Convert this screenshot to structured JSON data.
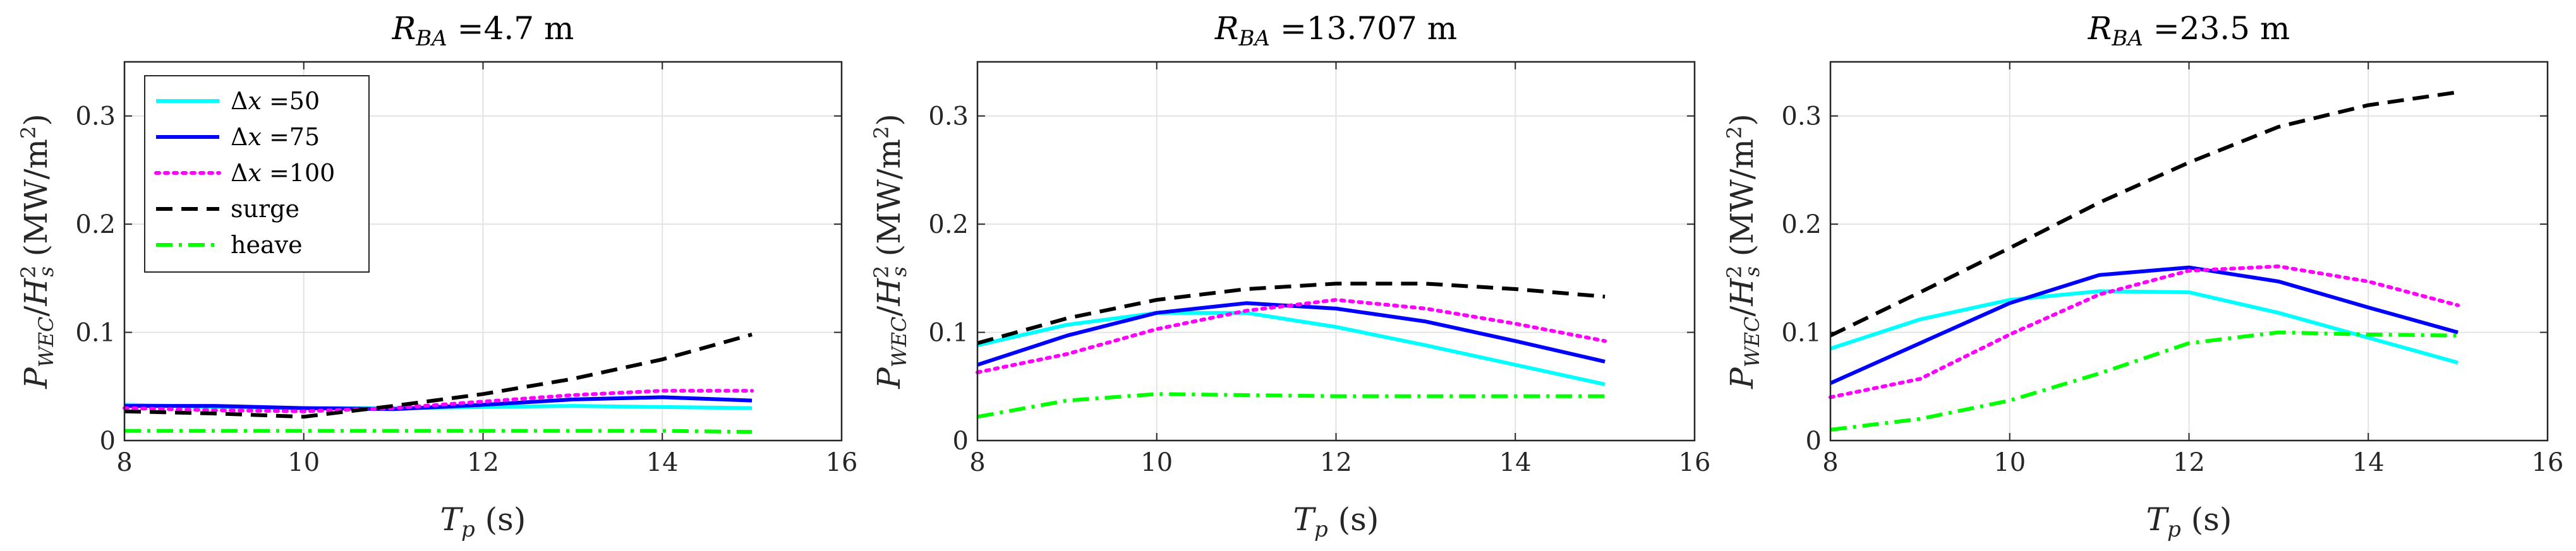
{
  "chart_data": [
    {
      "type": "line",
      "title": "R_BA =4.7 m",
      "title_parts": {
        "var": "R",
        "sub": "BA",
        "eq": " =4.7",
        "unit": " m"
      },
      "xlabel": "T_p (s)",
      "ylabel": "P_WEC/H_s^2 (MW/m^2)",
      "xlim": [
        8,
        16
      ],
      "ylim": [
        0,
        0.35
      ],
      "xticks": [
        8,
        10,
        12,
        14,
        16
      ],
      "yticks": [
        0,
        0.1,
        0.2,
        0.3
      ],
      "xtick_labels": [
        "8",
        "10",
        "12",
        "14",
        "16"
      ],
      "ytick_labels": [
        "0",
        "0.1",
        "0.2",
        "0.3"
      ],
      "grid": true,
      "legend": true,
      "x": [
        8,
        9,
        10,
        11,
        12,
        13,
        14,
        15
      ],
      "series": [
        {
          "name": "Δx =50",
          "color": "#00ffff",
          "dash": "solid",
          "values": [
            0.033,
            0.031,
            0.03,
            0.03,
            0.031,
            0.032,
            0.031,
            0.03
          ]
        },
        {
          "name": "Δx =75",
          "color": "#0000ff",
          "dash": "solid",
          "values": [
            0.032,
            0.032,
            0.03,
            0.029,
            0.033,
            0.038,
            0.04,
            0.037
          ]
        },
        {
          "name": "Δx =100",
          "color": "#ff00ff",
          "dash": "dot",
          "values": [
            0.03,
            0.028,
            0.027,
            0.03,
            0.036,
            0.042,
            0.046,
            0.046
          ]
        },
        {
          "name": "surge",
          "color": "#000000",
          "dash": "dash",
          "values": [
            0.027,
            0.025,
            0.022,
            0.032,
            0.043,
            0.057,
            0.075,
            0.098
          ]
        },
        {
          "name": "heave",
          "color": "#00ff00",
          "dash": "dashdot",
          "values": [
            0.009,
            0.009,
            0.009,
            0.009,
            0.009,
            0.009,
            0.009,
            0.008
          ]
        }
      ]
    },
    {
      "type": "line",
      "title": "R_BA =13.707 m",
      "title_parts": {
        "var": "R",
        "sub": "BA",
        "eq": " =13.707",
        "unit": " m"
      },
      "xlabel": "T_p (s)",
      "ylabel": "P_WEC/H_s^2 (MW/m^2)",
      "xlim": [
        8,
        16
      ],
      "ylim": [
        0,
        0.35
      ],
      "xticks": [
        8,
        10,
        12,
        14,
        16
      ],
      "yticks": [
        0,
        0.1,
        0.2,
        0.3
      ],
      "xtick_labels": [
        "8",
        "10",
        "12",
        "14",
        "16"
      ],
      "ytick_labels": [
        "0",
        "0.1",
        "0.2",
        "0.3"
      ],
      "grid": true,
      "legend": false,
      "x": [
        8,
        9,
        10,
        11,
        12,
        13,
        14,
        15
      ],
      "series": [
        {
          "name": "Δx =50",
          "color": "#00ffff",
          "dash": "solid",
          "values": [
            0.088,
            0.107,
            0.118,
            0.118,
            0.105,
            0.088,
            0.07,
            0.052
          ]
        },
        {
          "name": "Δx =75",
          "color": "#0000ff",
          "dash": "solid",
          "values": [
            0.07,
            0.097,
            0.118,
            0.127,
            0.122,
            0.11,
            0.092,
            0.073
          ]
        },
        {
          "name": "Δx =100",
          "color": "#ff00ff",
          "dash": "dot",
          "values": [
            0.063,
            0.08,
            0.103,
            0.12,
            0.13,
            0.122,
            0.108,
            0.092
          ]
        },
        {
          "name": "surge",
          "color": "#000000",
          "dash": "dash",
          "values": [
            0.09,
            0.113,
            0.13,
            0.14,
            0.145,
            0.145,
            0.14,
            0.133
          ]
        },
        {
          "name": "heave",
          "color": "#00ff00",
          "dash": "dashdot",
          "values": [
            0.022,
            0.037,
            0.043,
            0.042,
            0.041,
            0.041,
            0.041,
            0.041
          ]
        }
      ]
    },
    {
      "type": "line",
      "title": "R_BA =23.5 m",
      "title_parts": {
        "var": "R",
        "sub": "BA",
        "eq": " =23.5",
        "unit": " m"
      },
      "xlabel": "T_p (s)",
      "ylabel": "P_WEC/H_s^2 (MW/m^2)",
      "xlim": [
        8,
        16
      ],
      "ylim": [
        0,
        0.35
      ],
      "xticks": [
        8,
        10,
        12,
        14,
        16
      ],
      "yticks": [
        0,
        0.1,
        0.2,
        0.3
      ],
      "xtick_labels": [
        "8",
        "10",
        "12",
        "14",
        "16"
      ],
      "ytick_labels": [
        "0",
        "0.1",
        "0.2",
        "0.3"
      ],
      "grid": true,
      "legend": false,
      "x": [
        8,
        9,
        10,
        11,
        12,
        13,
        14,
        15
      ],
      "series": [
        {
          "name": "Δx =50",
          "color": "#00ffff",
          "dash": "solid",
          "values": [
            0.085,
            0.112,
            0.13,
            0.138,
            0.137,
            0.118,
            0.095,
            0.072
          ]
        },
        {
          "name": "Δx =75",
          "color": "#0000ff",
          "dash": "solid",
          "values": [
            0.053,
            0.09,
            0.127,
            0.153,
            0.16,
            0.147,
            0.123,
            0.1
          ]
        },
        {
          "name": "Δx =100",
          "color": "#ff00ff",
          "dash": "dot",
          "values": [
            0.04,
            0.057,
            0.098,
            0.135,
            0.157,
            0.161,
            0.147,
            0.125
          ]
        },
        {
          "name": "surge",
          "color": "#000000",
          "dash": "dash",
          "values": [
            0.097,
            0.137,
            0.178,
            0.22,
            0.257,
            0.29,
            0.31,
            0.322
          ]
        },
        {
          "name": "heave",
          "color": "#00ff00",
          "dash": "dashdot",
          "values": [
            0.01,
            0.02,
            0.037,
            0.062,
            0.09,
            0.1,
            0.098,
            0.097
          ]
        }
      ]
    }
  ]
}
